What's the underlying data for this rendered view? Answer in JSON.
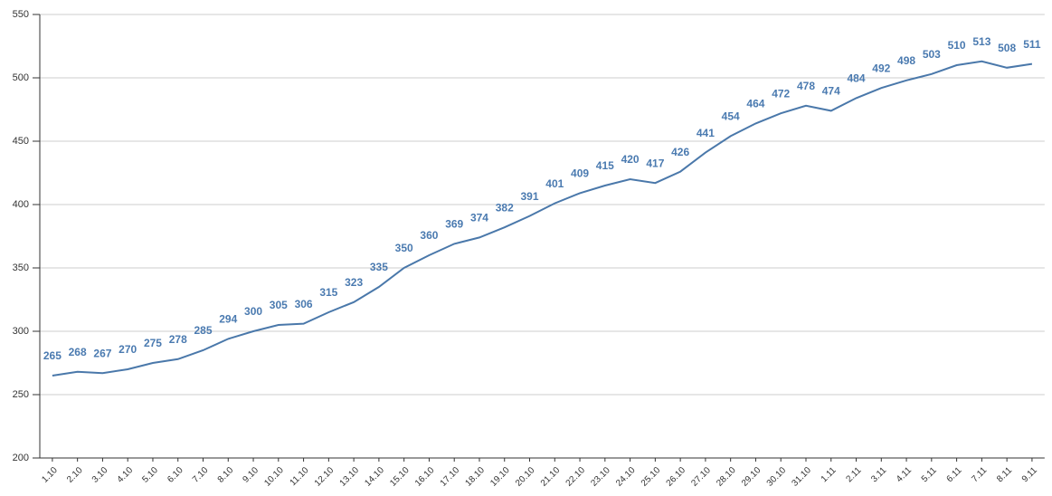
{
  "chart_data": {
    "type": "line",
    "categories": [
      "1.10",
      "2.10",
      "3.10",
      "4.10",
      "5.10",
      "6.10",
      "7.10",
      "8.10",
      "9.10",
      "10.10",
      "11.10",
      "12.10",
      "13.10",
      "14.10",
      "15.10",
      "16.10",
      "17.10",
      "18.10",
      "19.10",
      "20.10",
      "21.10",
      "22.10",
      "23.10",
      "24.10",
      "25.10",
      "26.10",
      "27.10",
      "28.10",
      "29.10",
      "30.10",
      "31.10",
      "1.11",
      "2.11",
      "3.11",
      "4.11",
      "5.11",
      "6.11",
      "7.11",
      "8.11",
      "9.11"
    ],
    "values": [
      265,
      268,
      267,
      270,
      275,
      278,
      285,
      294,
      300,
      305,
      306,
      315,
      323,
      335,
      350,
      360,
      369,
      374,
      382,
      391,
      401,
      409,
      415,
      420,
      417,
      426,
      441,
      454,
      464,
      472,
      478,
      474,
      484,
      492,
      498,
      503,
      510,
      513,
      508,
      511
    ],
    "color": "#4a78aa",
    "ylim": [
      200,
      550
    ],
    "yticks": [
      200,
      250,
      300,
      350,
      400,
      450,
      500,
      550
    ],
    "grid": true
  }
}
